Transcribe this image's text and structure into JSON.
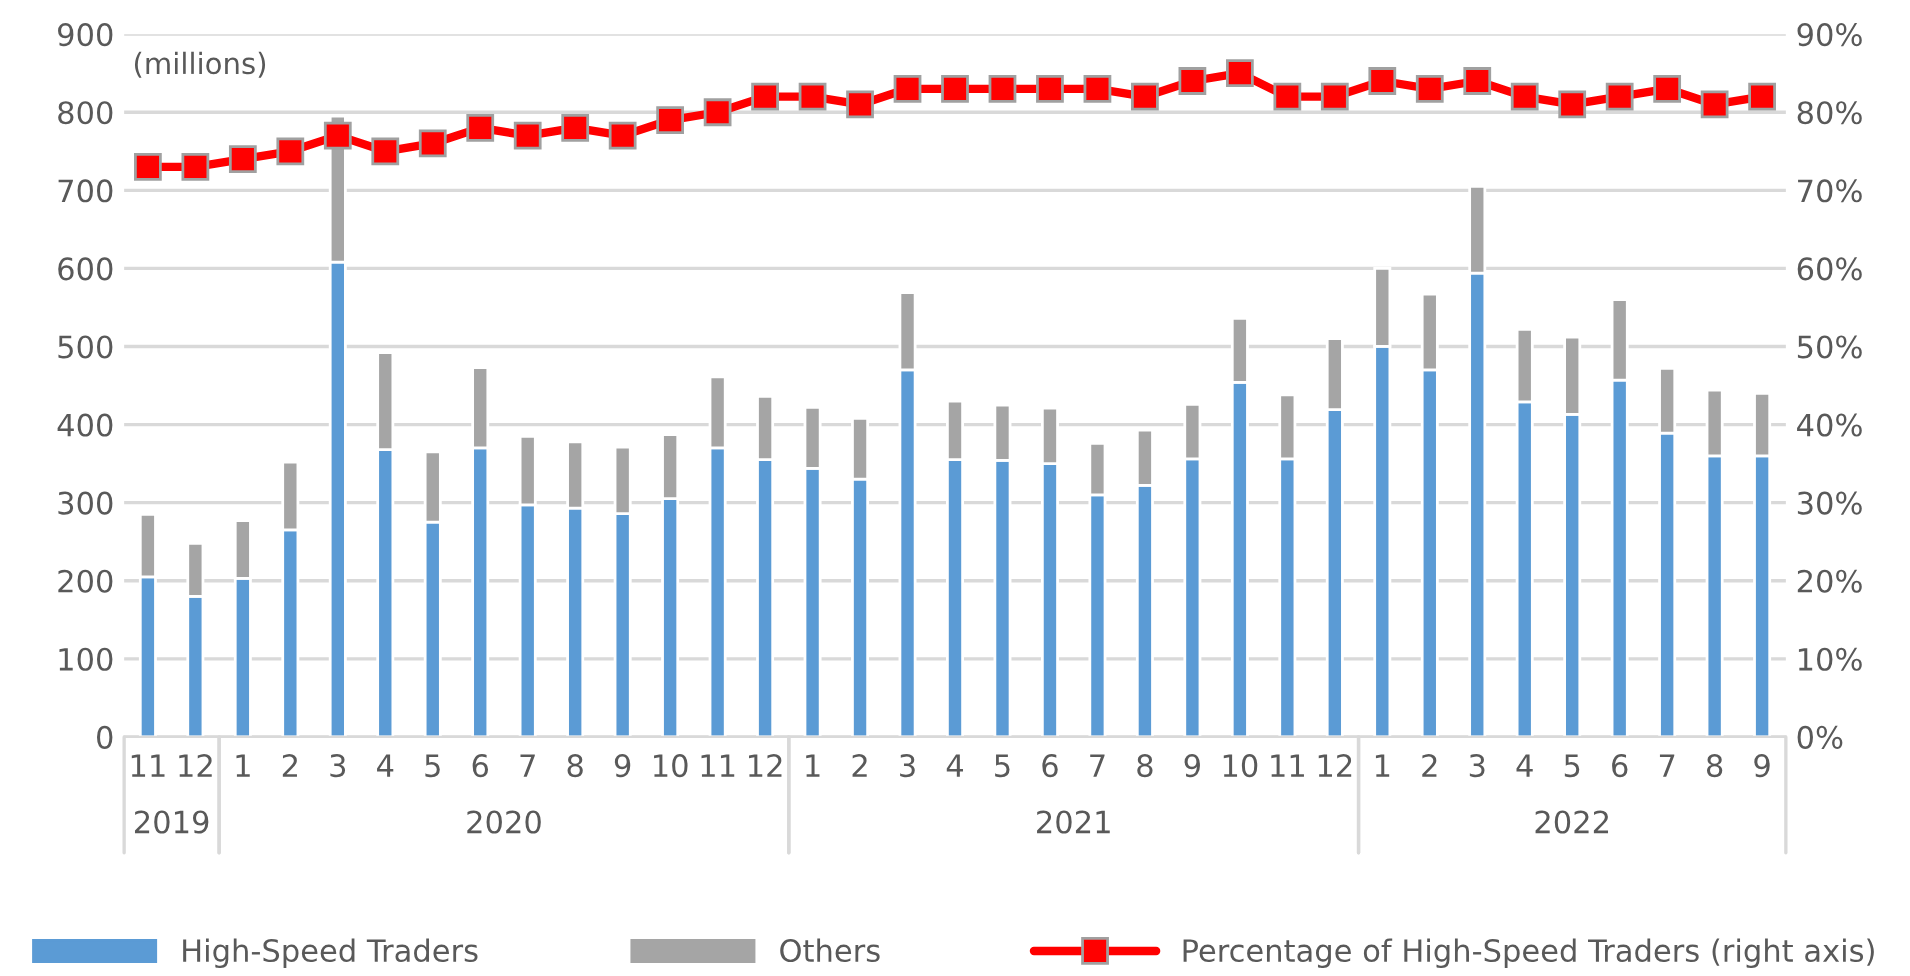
{
  "chart_data": {
    "type": "bar",
    "stacked": true,
    "categories": [
      "11",
      "12",
      "1",
      "2",
      "3",
      "4",
      "5",
      "6",
      "7",
      "8",
      "9",
      "10",
      "11",
      "12",
      "1",
      "2",
      "3",
      "4",
      "5",
      "6",
      "7",
      "8",
      "9",
      "10",
      "11",
      "12",
      "1",
      "2",
      "3",
      "4",
      "5",
      "6",
      "7",
      "8",
      "9"
    ],
    "series": [
      {
        "name": "High-Speed Traders",
        "color": "#5b9bd5",
        "values": [
          205,
          180,
          203,
          265,
          608,
          368,
          275,
          370,
          297,
          293,
          286,
          305,
          370,
          355,
          344,
          330,
          470,
          355,
          354,
          350,
          310,
          322,
          356,
          454,
          356,
          419,
          500,
          470,
          594,
          429,
          413,
          457,
          389,
          360,
          360
        ]
      },
      {
        "name": "Others",
        "color": "#a5a5a5",
        "values": [
          80,
          68,
          74,
          87,
          187,
          124,
          90,
          103,
          88,
          85,
          85,
          82,
          91,
          81,
          78,
          78,
          99,
          75,
          71,
          71,
          66,
          71,
          70,
          82,
          82,
          91,
          100,
          97,
          111,
          93,
          99,
          103,
          83,
          84,
          80
        ]
      },
      {
        "name": "Percentage of High-Speed Traders (right axis)",
        "type": "line",
        "axis": "y2",
        "color": "#ff0000",
        "marker": "square",
        "values": [
          73,
          73,
          74,
          75,
          77,
          75,
          76,
          78,
          77,
          78,
          77,
          79,
          80,
          82,
          82,
          81,
          83,
          83,
          83,
          83,
          83,
          82,
          84,
          85,
          82,
          82,
          84,
          83,
          84,
          82,
          81,
          82,
          83,
          81,
          82
        ]
      }
    ],
    "ylim": [
      0,
      900
    ],
    "yticks": [
      0,
      100,
      200,
      300,
      400,
      500,
      600,
      700,
      800,
      900
    ],
    "y2lim": [
      0,
      90
    ],
    "y2ticks": [
      {
        "value": 0,
        "label": "0%"
      },
      {
        "value": 10,
        "label": "10%"
      },
      {
        "value": 20,
        "label": "20%"
      },
      {
        "value": 30,
        "label": "30%"
      },
      {
        "value": 40,
        "label": "40%"
      },
      {
        "value": 50,
        "label": "50%"
      },
      {
        "value": 60,
        "label": "60%"
      },
      {
        "value": 70,
        "label": "70%"
      },
      {
        "value": 80,
        "label": "80%"
      },
      {
        "value": 90,
        "label": "90%"
      }
    ],
    "annotations": [
      "(millions)",
      "2019",
      "2020",
      "2021",
      "2022"
    ],
    "grid": "y",
    "legend": "bottom"
  }
}
